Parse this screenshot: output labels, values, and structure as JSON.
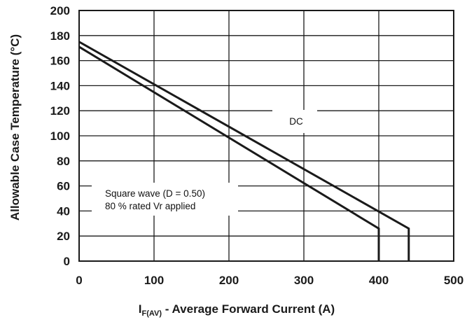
{
  "chart_data": {
    "type": "line",
    "xlabel_main": "I",
    "xlabel_sub": "F(AV)",
    "xlabel_rest": " - Average Forward Current (A)",
    "ylabel": "Allowable Case Temperature (°C)",
    "xlim": [
      0,
      500
    ],
    "ylim": [
      0,
      200
    ],
    "xticks": [
      0,
      100,
      200,
      300,
      400,
      500
    ],
    "yticks": [
      0,
      20,
      40,
      60,
      80,
      100,
      120,
      140,
      160,
      180,
      200
    ],
    "grid": true,
    "series": [
      {
        "x": [
          0,
          400,
          400
        ],
        "y": [
          171,
          26,
          0
        ],
        "color": "#1a1a1a"
      },
      {
        "x": [
          0,
          440,
          440
        ],
        "y": [
          175,
          26,
          0
        ],
        "color": "#1a1a1a"
      }
    ],
    "annotations": {
      "dc": "DC",
      "square_line1": "Square wave (D = 0.50)",
      "square_line2": "80 % rated Vr applied"
    }
  }
}
